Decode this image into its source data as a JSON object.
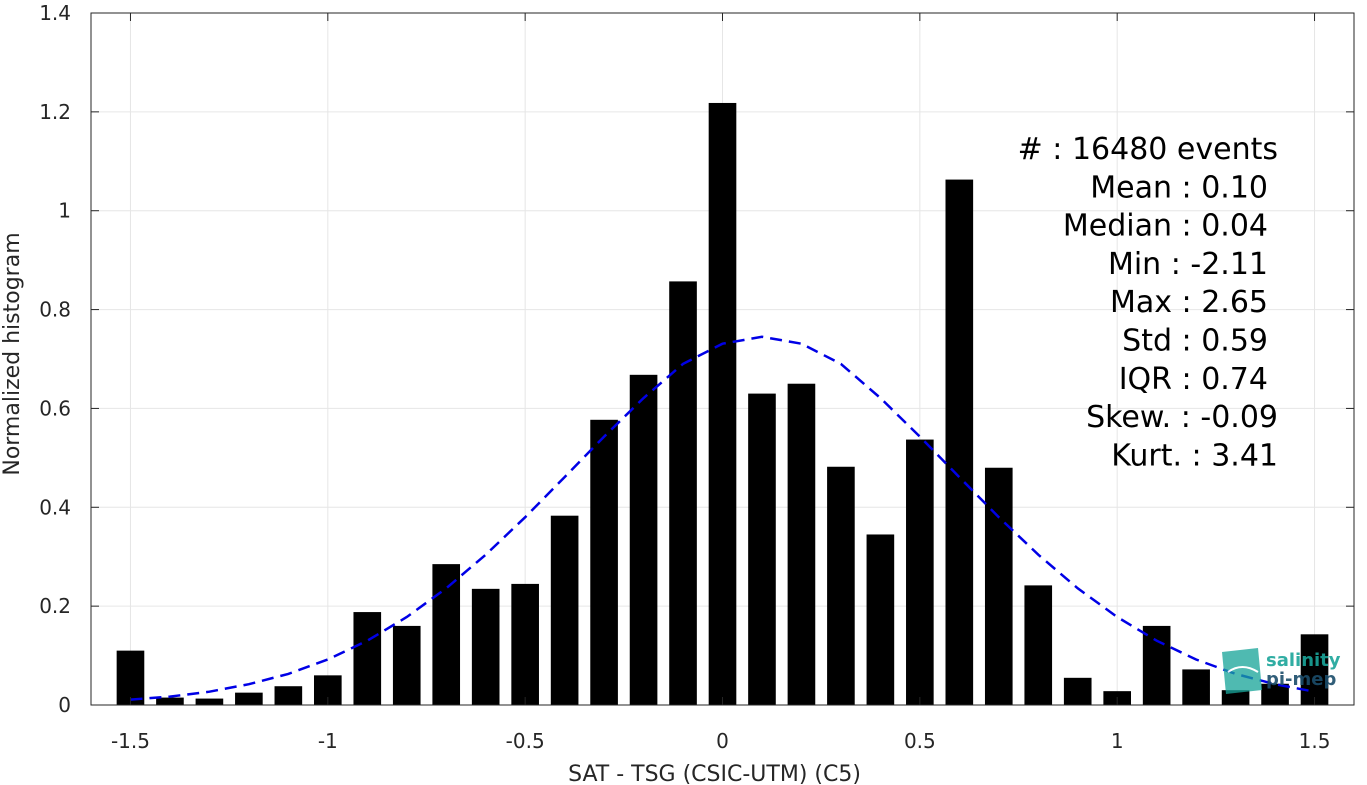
{
  "chart_data": {
    "type": "bar",
    "xlabel": "SAT - TSG (CSIC-UTM) (C5)",
    "ylabel": "Normalized histogram",
    "xlim": [
      -1.6,
      1.6
    ],
    "ylim": [
      0,
      1.4
    ],
    "grid": true,
    "x_ticks": [
      {
        "value": -1.5,
        "label": "-1.5"
      },
      {
        "value": -1.0,
        "label": "-1"
      },
      {
        "value": -0.5,
        "label": "-0.5"
      },
      {
        "value": 0.0,
        "label": "0"
      },
      {
        "value": 0.5,
        "label": "0.5"
      },
      {
        "value": 1.0,
        "label": "1"
      },
      {
        "value": 1.5,
        "label": "1.5"
      }
    ],
    "y_ticks": [
      {
        "value": 0,
        "label": "0"
      },
      {
        "value": 0.2,
        "label": "0.2"
      },
      {
        "value": 0.4,
        "label": "0.4"
      },
      {
        "value": 0.6,
        "label": "0.6"
      },
      {
        "value": 0.8,
        "label": "0.8"
      },
      {
        "value": 1.0,
        "label": "1"
      },
      {
        "value": 1.2,
        "label": "1.2"
      },
      {
        "value": 1.4,
        "label": "1.4"
      }
    ],
    "bar_width": 0.07,
    "bars": {
      "x": [
        -1.5,
        -1.4,
        -1.3,
        -1.2,
        -1.1,
        -1.0,
        -0.9,
        -0.8,
        -0.7,
        -0.6,
        -0.5,
        -0.4,
        -0.3,
        -0.2,
        -0.1,
        0.0,
        0.1,
        0.2,
        0.3,
        0.4,
        0.5,
        0.6,
        0.7,
        0.8,
        0.9,
        1.0,
        1.1,
        1.2,
        1.3,
        1.4,
        1.5
      ],
      "values": [
        0.11,
        0.015,
        0.013,
        0.025,
        0.038,
        0.06,
        0.188,
        0.16,
        0.285,
        0.235,
        0.245,
        0.383,
        0.577,
        0.668,
        0.857,
        1.218,
        0.63,
        0.65,
        0.482,
        0.345,
        0.537,
        1.063,
        0.48,
        0.242,
        0.055,
        0.028,
        0.16,
        0.072,
        0.03,
        0.043,
        0.143
      ],
      "color": "#000000"
    },
    "fit_curve": {
      "style": "dashed",
      "color": "#0000e6",
      "x": [
        -1.5,
        -1.4,
        -1.3,
        -1.2,
        -1.1,
        -1.0,
        -0.9,
        -0.8,
        -0.7,
        -0.6,
        -0.5,
        -0.4,
        -0.3,
        -0.2,
        -0.1,
        0.0,
        0.1,
        0.2,
        0.3,
        0.4,
        0.5,
        0.6,
        0.7,
        0.8,
        0.9,
        1.0,
        1.1,
        1.2,
        1.3,
        1.4,
        1.5
      ],
      "y": [
        0.011,
        0.017,
        0.027,
        0.042,
        0.063,
        0.092,
        0.13,
        0.178,
        0.236,
        0.304,
        0.38,
        0.461,
        0.543,
        0.621,
        0.69,
        0.731,
        0.745,
        0.731,
        0.69,
        0.621,
        0.543,
        0.461,
        0.38,
        0.304,
        0.236,
        0.178,
        0.13,
        0.092,
        0.063,
        0.042,
        0.027
      ]
    },
    "stats": [
      {
        "label": "#  ",
        "value": ": 16480 events"
      },
      {
        "label": "Mean ",
        "value": ": 0.10"
      },
      {
        "label": "Median ",
        "value": ": 0.04"
      },
      {
        "label": "Min ",
        "value": ": -2.11"
      },
      {
        "label": "Max ",
        "value": ": 2.65"
      },
      {
        "label": "Std ",
        "value": ": 0.59"
      },
      {
        "label": "IQR ",
        "value": ": 0.74"
      },
      {
        "label": "Skew. ",
        "value": ": -0.09"
      },
      {
        "label": "Kurt. ",
        "value": ": 3.41"
      }
    ]
  },
  "logo": {
    "line1": "salinity",
    "line2": "pi-mep",
    "color1": "#1aa59a",
    "color2": "#1b4d6b"
  }
}
